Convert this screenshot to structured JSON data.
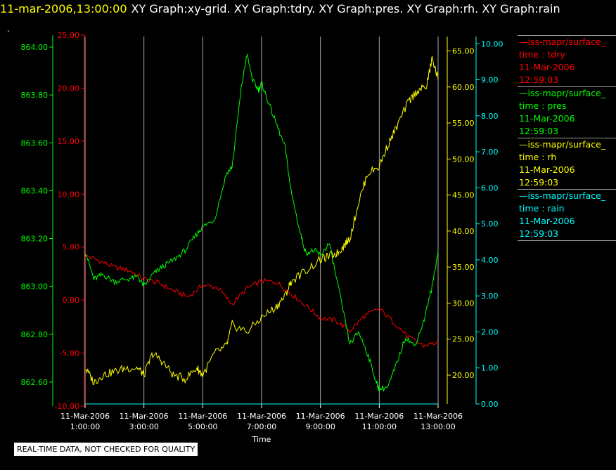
{
  "header": {
    "time_label": "11-mar-2006,13:00:00",
    "title": "XY Graph:xy-grid.  XY Graph:tdry.  XY Graph:pres.  XY Graph:rh.  XY Graph:rain"
  },
  "dot": ".",
  "footer_note": "REAL-TIME DATA, NOT CHECKED FOR QUALITY",
  "colors": {
    "background": "#000000",
    "tdry": "#ff0000",
    "pres": "#00ff00",
    "rh": "#ffff00",
    "rain": "#00ffff",
    "grid": "#aaaaaa"
  },
  "legend": [
    {
      "source": "—iss-mapr/surface_",
      "var": "time : tdry",
      "date": "11-Mar-2006",
      "time": "12:59:03",
      "color": "#ff0000"
    },
    {
      "source": "—iss-mapr/surface_",
      "var": "time : pres",
      "date": "11-Mar-2006",
      "time": "12:59:03",
      "color": "#00ff00"
    },
    {
      "source": "—iss-mapr/surface_",
      "var": "time : rh",
      "date": "11-Mar-2006",
      "time": "12:59:03",
      "color": "#ffff00"
    },
    {
      "source": "—iss-mapr/surface_",
      "var": "time : rain",
      "date": "11-Mar-2006",
      "time": "12:59:03",
      "color": "#00ffff"
    }
  ],
  "chart_data": {
    "type": "line",
    "xlabel": "Time",
    "x_ticks": [
      {
        "date": "11-Mar-2006",
        "time": "1:00:00",
        "hour": 1
      },
      {
        "date": "11-Mar-2006",
        "time": "3:00:00",
        "hour": 3
      },
      {
        "date": "11-Mar-2006",
        "time": "5:00:00",
        "hour": 5
      },
      {
        "date": "11-Mar-2006",
        "time": "7:00:00",
        "hour": 7
      },
      {
        "date": "11-Mar-2006",
        "time": "9:00:00",
        "hour": 9
      },
      {
        "date": "11-Mar-2006",
        "time": "11:00:00",
        "hour": 11
      },
      {
        "date": "11-Mar-2006",
        "time": "13:00:00",
        "hour": 13
      }
    ],
    "xlim": [
      1,
      13
    ],
    "grid": true,
    "axes": [
      {
        "id": "tdry",
        "color": "#ff0000",
        "side": "left",
        "ylim": [
          -10,
          25
        ],
        "ticks": [
          "-10.00",
          "-5.00",
          "0.00",
          "5.00",
          "10.00",
          "15.00",
          "20.00",
          "25.00"
        ],
        "tick_values": [
          -10,
          -5,
          0,
          5,
          10,
          15,
          20,
          25
        ]
      },
      {
        "id": "pres",
        "color": "#00ff00",
        "side": "left",
        "ylim": [
          862.5,
          864.05
        ],
        "ticks": [
          "862.60",
          "862.80",
          "863.00",
          "863.20",
          "863.40",
          "863.60",
          "863.80",
          "864.00"
        ],
        "tick_values": [
          862.6,
          862.8,
          863.0,
          863.2,
          863.4,
          863.6,
          863.8,
          864.0
        ]
      },
      {
        "id": "rh",
        "color": "#ffff00",
        "side": "right",
        "ylim": [
          16,
          67
        ],
        "ticks": [
          "20.00",
          "25.00",
          "30.00",
          "35.00",
          "40.00",
          "45.00",
          "50.00",
          "55.00",
          "60.00",
          "65.00"
        ],
        "tick_values": [
          20,
          25,
          30,
          35,
          40,
          45,
          50,
          55,
          60,
          65
        ]
      },
      {
        "id": "rain",
        "color": "#00ffff",
        "side": "right",
        "ylim": [
          0,
          10.2
        ],
        "ticks": [
          "0.00",
          "1.00",
          "2.00",
          "3.00",
          "4.00",
          "5.00",
          "6.00",
          "7.00",
          "8.00",
          "9.00",
          "10.00"
        ],
        "tick_values": [
          0,
          1,
          2,
          3,
          4,
          5,
          6,
          7,
          8,
          9,
          10
        ]
      }
    ],
    "series": [
      {
        "name": "tdry",
        "axis": "tdry",
        "color": "#ff0000",
        "x": [
          1.0,
          1.5,
          2.0,
          2.5,
          3.0,
          3.5,
          4.0,
          4.5,
          5.0,
          5.5,
          6.0,
          6.5,
          7.0,
          7.5,
          8.0,
          8.5,
          9.0,
          9.5,
          10.0,
          10.5,
          11.0,
          11.5,
          12.0,
          12.5,
          13.0
        ],
        "y": [
          4.2,
          3.7,
          3.1,
          2.8,
          2.0,
          1.6,
          0.9,
          0.3,
          1.4,
          1.2,
          -0.4,
          1.1,
          1.8,
          1.7,
          0.6,
          -0.5,
          -1.7,
          -1.9,
          -2.9,
          -1.5,
          -0.8,
          -2.1,
          -3.5,
          -4.3,
          -4.0
        ]
      },
      {
        "name": "pres",
        "axis": "pres",
        "color": "#00ff00",
        "x": [
          1.0,
          1.3,
          1.6,
          2.0,
          2.4,
          2.8,
          3.0,
          3.3,
          3.6,
          4.0,
          4.4,
          4.8,
          5.0,
          5.4,
          5.8,
          6.0,
          6.3,
          6.5,
          6.7,
          6.9,
          7.0,
          7.2,
          7.5,
          7.8,
          8.0,
          8.3,
          8.5,
          8.8,
          9.0,
          9.3,
          9.6,
          10.0,
          10.3,
          10.6,
          10.9,
          11.0,
          11.3,
          11.6,
          11.9,
          12.2,
          12.5,
          12.8,
          13.0
        ],
        "y": [
          863.15,
          863.03,
          863.05,
          863.02,
          863.03,
          863.04,
          863.0,
          863.05,
          863.08,
          863.11,
          863.15,
          863.22,
          863.25,
          863.28,
          863.47,
          863.5,
          863.82,
          863.97,
          863.86,
          863.82,
          863.85,
          863.78,
          863.68,
          863.58,
          863.4,
          863.23,
          863.14,
          863.15,
          863.13,
          863.18,
          863.0,
          862.76,
          862.81,
          862.72,
          862.6,
          862.57,
          862.58,
          862.68,
          862.79,
          862.75,
          862.85,
          863.0,
          863.15
        ]
      },
      {
        "name": "rh",
        "axis": "rh",
        "color": "#ffff00",
        "x": [
          1.0,
          1.3,
          1.6,
          2.0,
          2.4,
          2.8,
          3.0,
          3.3,
          3.6,
          4.0,
          4.4,
          4.8,
          5.0,
          5.4,
          5.8,
          6.0,
          6.5,
          7.0,
          7.5,
          7.8,
          8.0,
          8.5,
          9.0,
          9.3,
          9.6,
          9.8,
          10.0,
          10.3,
          10.6,
          11.0,
          11.3,
          11.6,
          12.0,
          12.3,
          12.6,
          12.8,
          13.0
        ],
        "y": [
          21.0,
          19.0,
          20.0,
          20.5,
          21.0,
          21.0,
          20.0,
          23.0,
          22.0,
          20.0,
          19.5,
          21.0,
          20.0,
          23.0,
          24.0,
          27.0,
          26.0,
          28.0,
          29.5,
          31.0,
          33.0,
          34.5,
          36.0,
          36.5,
          37.0,
          38.0,
          39.0,
          44.0,
          48.0,
          49.0,
          52.0,
          54.5,
          58.0,
          59.5,
          60.0,
          64.0,
          61.0
        ]
      },
      {
        "name": "rain",
        "axis": "rain",
        "color": "#00ffff",
        "x": [
          1.0,
          13.0
        ],
        "y": [
          0.0,
          0.0
        ]
      }
    ]
  }
}
